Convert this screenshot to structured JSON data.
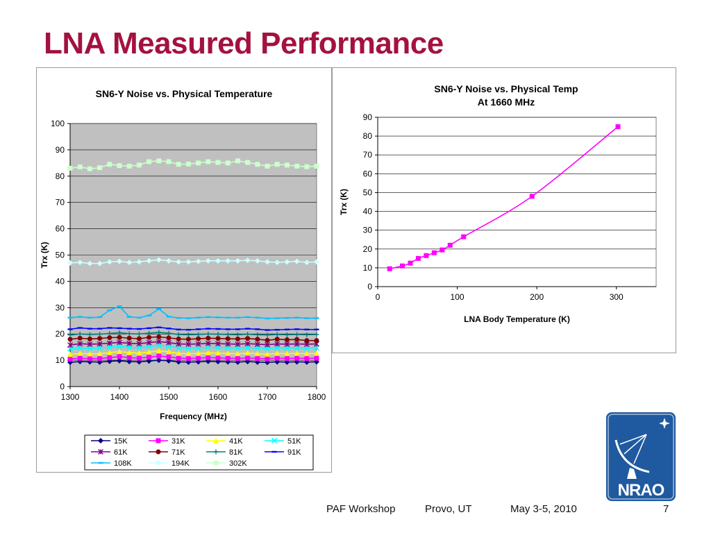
{
  "slide": {
    "title": "LNA Measured Performance",
    "footer": {
      "event": "PAF Workshop",
      "location": "Provo, UT",
      "date": "May 3-5, 2010",
      "page": "7"
    },
    "logo_text": "NRAO",
    "colors": {
      "title": "#a3123f",
      "logo_bg": "#1f5aa0"
    }
  },
  "chart_data": [
    {
      "type": "line",
      "title": "SN6-Y Noise vs. Physical Temperature",
      "xlabel": "Frequency (MHz)",
      "ylabel": "Trx (K)",
      "xlim": [
        1300,
        1800
      ],
      "ylim": [
        0,
        100
      ],
      "xticks": [
        1300,
        1400,
        1500,
        1600,
        1700,
        1800
      ],
      "yticks": [
        0,
        10,
        20,
        30,
        40,
        50,
        60,
        70,
        80,
        90,
        100
      ],
      "grid": true,
      "plot_background": "#c0c0c0",
      "legend_position": "bottom",
      "x": [
        1300,
        1320,
        1340,
        1360,
        1380,
        1400,
        1420,
        1440,
        1460,
        1480,
        1500,
        1520,
        1540,
        1560,
        1580,
        1600,
        1620,
        1640,
        1660,
        1680,
        1700,
        1720,
        1740,
        1760,
        1780,
        1800
      ],
      "series": [
        {
          "name": "15K",
          "color": "#000080",
          "marker": "diamond",
          "values": [
            9.2,
            9.5,
            9.4,
            9.3,
            9.6,
            9.8,
            9.5,
            9.4,
            9.7,
            10.0,
            9.8,
            9.4,
            9.3,
            9.4,
            9.6,
            9.5,
            9.4,
            9.3,
            9.5,
            9.3,
            9.2,
            9.4,
            9.3,
            9.4,
            9.3,
            9.4
          ]
        },
        {
          "name": "31K",
          "color": "#ff00ff",
          "marker": "square",
          "values": [
            10.5,
            10.8,
            10.6,
            10.7,
            11.0,
            11.4,
            11.0,
            10.8,
            11.2,
            11.6,
            11.3,
            10.8,
            10.7,
            10.8,
            11.0,
            10.9,
            10.8,
            10.7,
            10.9,
            10.7,
            10.6,
            10.8,
            10.7,
            10.8,
            10.7,
            10.8
          ]
        },
        {
          "name": "41K",
          "color": "#ffff00",
          "marker": "triangle",
          "values": [
            12.2,
            12.6,
            12.4,
            12.5,
            12.9,
            13.3,
            12.9,
            12.7,
            13.1,
            13.6,
            13.2,
            12.6,
            12.5,
            12.6,
            12.8,
            12.7,
            12.6,
            12.5,
            12.7,
            12.5,
            12.3,
            12.6,
            12.5,
            12.6,
            12.5,
            12.6
          ]
        },
        {
          "name": "51K",
          "color": "#00ffff",
          "marker": "x",
          "values": [
            14.4,
            14.7,
            14.5,
            14.6,
            15.0,
            15.3,
            14.9,
            14.8,
            15.2,
            15.7,
            15.3,
            14.7,
            14.6,
            14.7,
            14.9,
            14.8,
            14.7,
            14.6,
            14.8,
            14.6,
            14.5,
            14.7,
            14.6,
            14.7,
            14.6,
            14.7
          ]
        },
        {
          "name": "61K",
          "color": "#800080",
          "marker": "star",
          "values": [
            15.8,
            16.3,
            16.1,
            16.2,
            16.5,
            16.8,
            16.4,
            16.3,
            16.7,
            17.1,
            16.7,
            16.2,
            16.1,
            16.2,
            16.4,
            16.3,
            16.2,
            16.1,
            16.3,
            16.1,
            15.9,
            16.2,
            16.1,
            16.2,
            16.1,
            16.2
          ]
        },
        {
          "name": "71K",
          "color": "#800000",
          "marker": "circle",
          "values": [
            18.0,
            18.4,
            18.1,
            18.3,
            18.6,
            18.7,
            18.4,
            18.2,
            18.7,
            18.9,
            18.5,
            18.1,
            18.0,
            18.2,
            18.4,
            18.3,
            18.2,
            18.1,
            18.3,
            18.0,
            17.6,
            18.0,
            17.8,
            17.9,
            17.5,
            17.5
          ]
        },
        {
          "name": "81K",
          "color": "#008080",
          "marker": "plus",
          "values": [
            19.6,
            20.0,
            19.8,
            19.9,
            20.2,
            20.5,
            20.1,
            20.0,
            20.3,
            20.6,
            20.3,
            19.8,
            19.7,
            19.8,
            20.0,
            19.9,
            19.8,
            19.7,
            19.9,
            19.7,
            19.6,
            19.8,
            19.7,
            19.8,
            19.7,
            19.8
          ]
        },
        {
          "name": "91K",
          "color": "#0000ff",
          "marker": "dash",
          "values": [
            21.8,
            22.3,
            22.0,
            22.0,
            22.3,
            22.2,
            22.0,
            21.9,
            22.2,
            22.5,
            22.1,
            21.7,
            21.6,
            21.8,
            22.0,
            21.9,
            21.8,
            21.8,
            22.0,
            21.8,
            21.5,
            21.6,
            21.7,
            21.8,
            21.7,
            21.7
          ]
        },
        {
          "name": "108K",
          "color": "#00bfff",
          "marker": "dash",
          "values": [
            26.2,
            26.5,
            26.2,
            26.4,
            29.0,
            30.5,
            26.5,
            26.2,
            27.0,
            29.5,
            26.6,
            26.1,
            26.0,
            26.2,
            26.4,
            26.3,
            26.2,
            26.2,
            26.4,
            26.2,
            25.9,
            26.0,
            26.1,
            26.2,
            26.0,
            26.0
          ]
        },
        {
          "name": "194K",
          "color": "#ccffff",
          "marker": "diamond",
          "values": [
            47.0,
            47.2,
            46.8,
            46.8,
            47.4,
            47.6,
            47.2,
            47.4,
            47.8,
            48.2,
            47.8,
            47.4,
            47.4,
            47.6,
            47.8,
            47.8,
            47.8,
            47.8,
            48.0,
            47.8,
            47.4,
            47.2,
            47.4,
            47.6,
            47.2,
            47.4
          ]
        },
        {
          "name": "302K",
          "color": "#ccffcc",
          "marker": "square",
          "values": [
            83.0,
            83.5,
            82.8,
            83.2,
            84.5,
            84.0,
            83.8,
            84.2,
            85.5,
            85.8,
            85.5,
            84.5,
            84.6,
            85.0,
            85.5,
            85.2,
            85.0,
            85.8,
            85.2,
            84.5,
            83.8,
            84.5,
            84.2,
            83.8,
            83.6,
            83.8
          ]
        }
      ]
    },
    {
      "type": "line",
      "title": "SN6-Y Noise vs. Physical Temp",
      "subtitle": "At 1660 MHz",
      "xlabel": "LNA Body Temperature (K)",
      "ylabel": "Trx (K)",
      "xlim": [
        0,
        350
      ],
      "ylim": [
        0,
        90
      ],
      "xticks": [
        0,
        100,
        200,
        300
      ],
      "yticks": [
        0,
        10,
        20,
        30,
        40,
        50,
        60,
        70,
        80,
        90
      ],
      "grid": true,
      "legend": false,
      "series": [
        {
          "color": "#ff00ff",
          "marker": "square",
          "x": [
            15,
            31,
            41,
            51,
            61,
            71,
            81,
            91,
            108,
            194,
            302
          ],
          "values": [
            9.5,
            11.0,
            12.5,
            15.0,
            16.5,
            18.0,
            19.5,
            22.0,
            26.5,
            48.0,
            85.0
          ]
        }
      ]
    }
  ]
}
